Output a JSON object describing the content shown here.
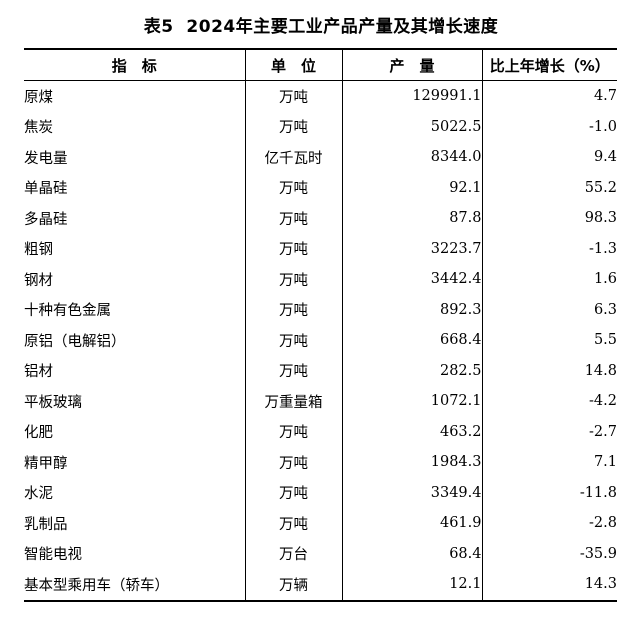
{
  "title": "表5  2024年主要工业产品产量及其增长速度",
  "colors": {
    "text": "#000000",
    "background": "#ffffff",
    "border": "#000000"
  },
  "table": {
    "columns": [
      "指　标",
      "单　位",
      "产　量",
      "比上年增长（%）"
    ],
    "rows": [
      {
        "indicator": "原煤",
        "unit": "万吨",
        "output": "129991.1",
        "growth": "4.7"
      },
      {
        "indicator": "焦炭",
        "unit": "万吨",
        "output": "5022.5",
        "growth": "-1.0"
      },
      {
        "indicator": "发电量",
        "unit": "亿千瓦时",
        "output": "8344.0",
        "growth": "9.4"
      },
      {
        "indicator": "单晶硅",
        "unit": "万吨",
        "output": "92.1",
        "growth": "55.2"
      },
      {
        "indicator": "多晶硅",
        "unit": "万吨",
        "output": "87.8",
        "growth": "98.3"
      },
      {
        "indicator": "粗钢",
        "unit": "万吨",
        "output": "3223.7",
        "growth": "-1.3"
      },
      {
        "indicator": "钢材",
        "unit": "万吨",
        "output": "3442.4",
        "growth": "1.6"
      },
      {
        "indicator": "十种有色金属",
        "unit": "万吨",
        "output": "892.3",
        "growth": "6.3"
      },
      {
        "indicator": "原铝（电解铝）",
        "unit": "万吨",
        "output": "668.4",
        "growth": "5.5"
      },
      {
        "indicator": "铝材",
        "unit": "万吨",
        "output": "282.5",
        "growth": "14.8"
      },
      {
        "indicator": "平板玻璃",
        "unit": "万重量箱",
        "output": "1072.1",
        "growth": "-4.2"
      },
      {
        "indicator": "化肥",
        "unit": "万吨",
        "output": "463.2",
        "growth": "-2.7"
      },
      {
        "indicator": "精甲醇",
        "unit": "万吨",
        "output": "1984.3",
        "growth": "7.1"
      },
      {
        "indicator": "水泥",
        "unit": "万吨",
        "output": "3349.4",
        "growth": "-11.8"
      },
      {
        "indicator": "乳制品",
        "unit": "万吨",
        "output": "461.9",
        "growth": "-2.8"
      },
      {
        "indicator": "智能电视",
        "unit": "万台",
        "output": "68.4",
        "growth": "-35.9"
      },
      {
        "indicator": "基本型乘用车（轿车）",
        "unit": "万辆",
        "output": "12.1",
        "growth": "14.3"
      }
    ]
  }
}
